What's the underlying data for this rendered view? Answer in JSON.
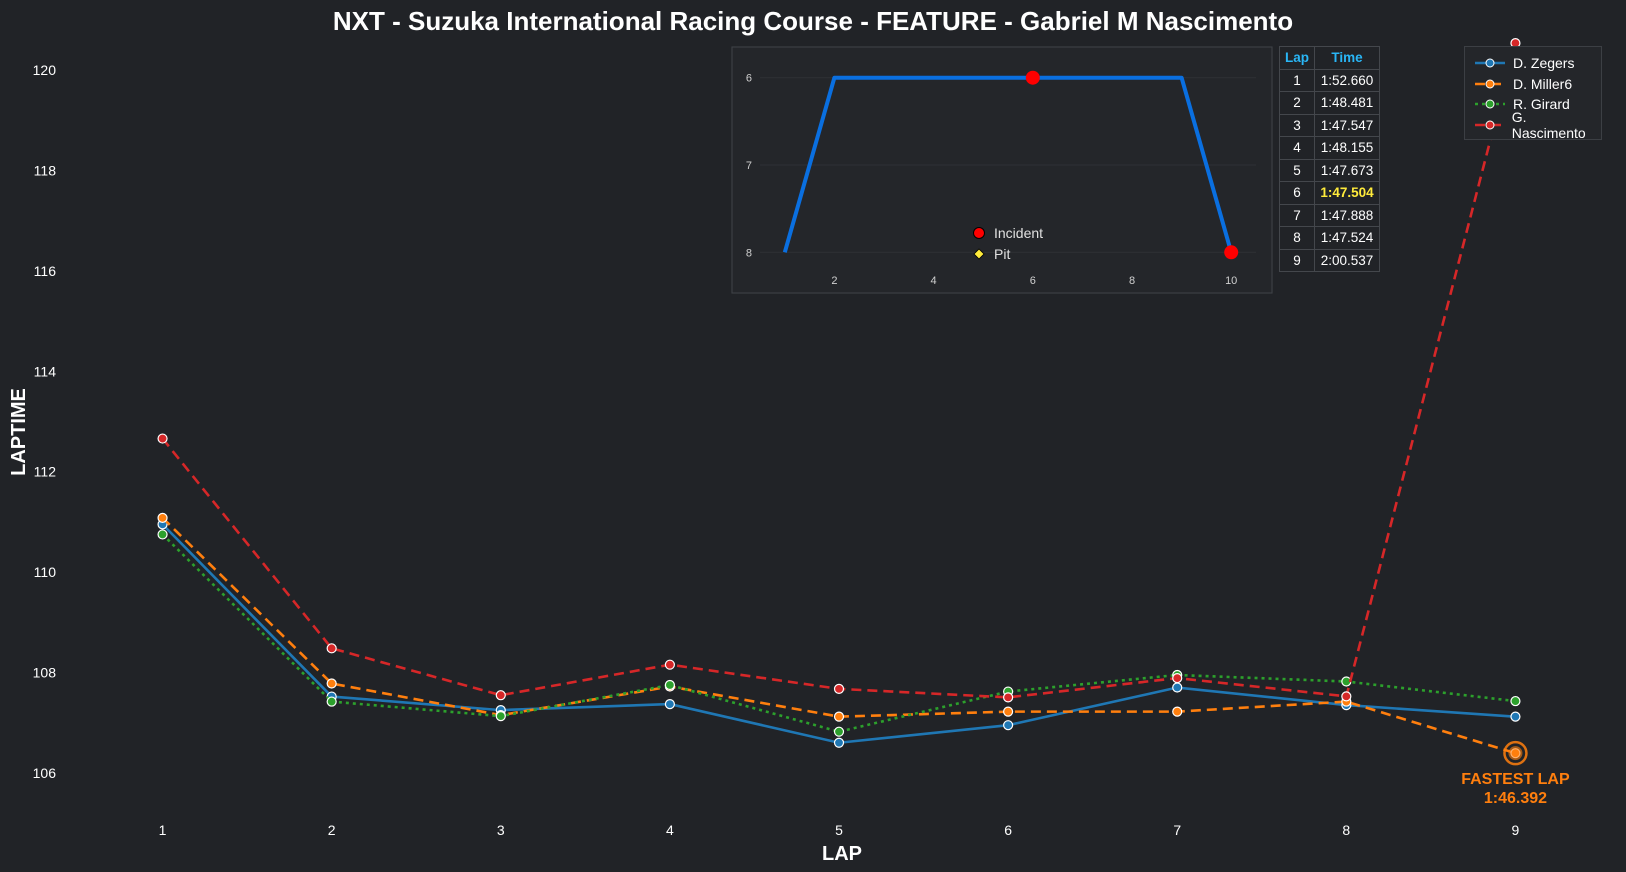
{
  "title": "NXT - Suzuka International Racing Course - FEATURE - Gabriel M Nascimento",
  "colors": {
    "background": "#212327",
    "zegers": "#1f77b4",
    "miller": "#ff7f0e",
    "girard": "#2ca02c",
    "nascimento": "#d62728",
    "position_line": "#0a6fe0",
    "fastest_lap_text": "#ff7f0e",
    "table_header": "#29b6f6",
    "best_time": "#ffeb3b"
  },
  "chart_data": [
    {
      "type": "line",
      "title": "NXT - Suzuka International Racing Course - FEATURE - Gabriel M Nascimento",
      "xlabel": "LAP",
      "ylabel": "LAPTIME",
      "x": [
        1,
        2,
        3,
        4,
        5,
        6,
        7,
        8,
        9
      ],
      "xlim": [
        0.5,
        9.5
      ],
      "ylim": [
        105.3,
        120.6
      ],
      "yticks": [
        106,
        108,
        110,
        112,
        114,
        116,
        118,
        120
      ],
      "grid": false,
      "legend_position": "top-right",
      "series": [
        {
          "name": "D. Zegers",
          "style": "solid",
          "color": "#1f77b4",
          "values": [
            110.95,
            107.52,
            107.25,
            107.37,
            106.6,
            106.95,
            107.7,
            107.35,
            107.12
          ]
        },
        {
          "name": "D. Miller6",
          "style": "dashed",
          "color": "#ff7f0e",
          "values": [
            111.08,
            107.78,
            107.15,
            107.72,
            107.12,
            107.22,
            107.22,
            107.42,
            106.392
          ]
        },
        {
          "name": "R. Girard",
          "style": "dotted",
          "color": "#2ca02c",
          "values": [
            110.75,
            107.42,
            107.13,
            107.75,
            106.82,
            107.62,
            107.95,
            107.82,
            107.43
          ]
        },
        {
          "name": "G. Nascimento",
          "style": "dashed",
          "color": "#d62728",
          "values": [
            112.66,
            108.481,
            107.547,
            108.155,
            107.673,
            107.504,
            107.888,
            107.524,
            120.537
          ]
        }
      ],
      "annotation": {
        "label": "FASTEST LAP",
        "value": "1:46.392",
        "x": 9,
        "y": 106.392
      }
    },
    {
      "type": "line",
      "name": "position-inset",
      "x": [
        1,
        2,
        3,
        4,
        5,
        6,
        7,
        8,
        9,
        10
      ],
      "values": [
        8,
        6,
        6,
        6,
        6,
        6,
        6,
        6,
        6,
        8
      ],
      "xlim": [
        0.5,
        10.5
      ],
      "ylim": [
        8.1,
        5.9
      ],
      "xticks": [
        2,
        4,
        6,
        8,
        10
      ],
      "yticks": [
        6,
        7,
        8
      ],
      "incidents": [
        {
          "x": 6,
          "y": 6
        },
        {
          "x": 10,
          "y": 8
        }
      ],
      "pits": []
    }
  ],
  "inset_legend": {
    "incident_label": "Incident",
    "pit_label": "Pit"
  },
  "lap_table": {
    "headers": [
      "Lap",
      "Time"
    ],
    "rows": [
      {
        "lap": "1",
        "time": "1:52.660"
      },
      {
        "lap": "2",
        "time": "1:48.481"
      },
      {
        "lap": "3",
        "time": "1:47.547"
      },
      {
        "lap": "4",
        "time": "1:48.155"
      },
      {
        "lap": "5",
        "time": "1:47.673"
      },
      {
        "lap": "6",
        "time": "1:47.504",
        "best": true
      },
      {
        "lap": "7",
        "time": "1:47.888"
      },
      {
        "lap": "8",
        "time": "1:47.524"
      },
      {
        "lap": "9",
        "time": "2:00.537"
      }
    ]
  }
}
